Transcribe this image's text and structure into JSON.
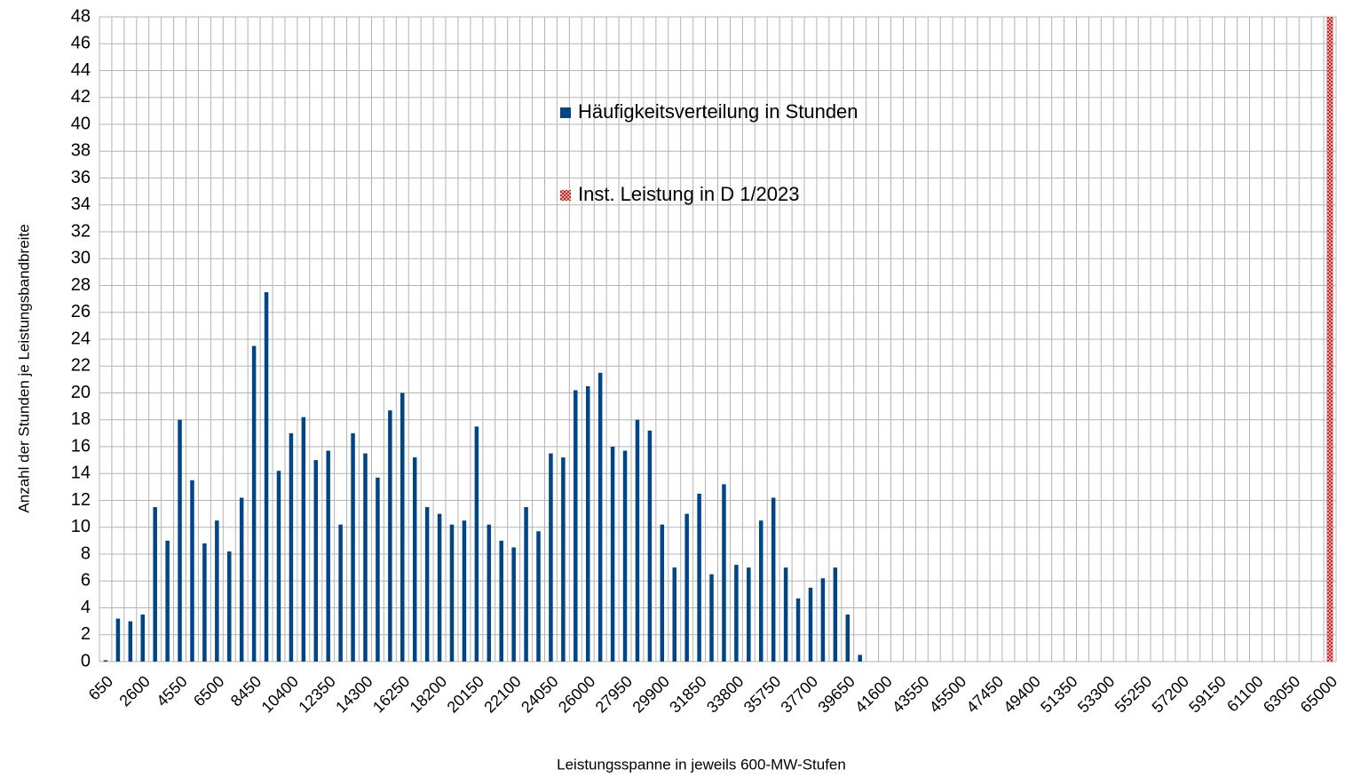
{
  "chart_data": {
    "type": "bar",
    "y_label": "Anzahl der Stunden je Leistungsbandbreite",
    "x_label": "Leistungsspanne in jeweils 600-MW-Stufen",
    "categories": [
      "650",
      null,
      null,
      "2600",
      null,
      null,
      "4550",
      null,
      null,
      "6500",
      null,
      null,
      "8450",
      null,
      null,
      "10400",
      null,
      null,
      "12350",
      null,
      null,
      "14300",
      null,
      null,
      "16250",
      null,
      null,
      "18200",
      null,
      null,
      "20150",
      null,
      null,
      "22100",
      null,
      null,
      "24050",
      null,
      null,
      "26000",
      null,
      null,
      "27950",
      null,
      null,
      "29900",
      null,
      null,
      "31850",
      null,
      null,
      "33800",
      null,
      null,
      "35750",
      null,
      null,
      "37700",
      null,
      null,
      "39650",
      null,
      null,
      "41600",
      null,
      null,
      "43550",
      null,
      null,
      "45500",
      null,
      null,
      "47450",
      null,
      null,
      "49400",
      null,
      null,
      "51350",
      null,
      null,
      "53300",
      null,
      null,
      "55250",
      null,
      null,
      "57200",
      null,
      null,
      "59150",
      null,
      null,
      "61100",
      null,
      null,
      "63050",
      null,
      null,
      "65000"
    ],
    "series": [
      {
        "name": "Häufigkeitsverteilung in Stunden",
        "color": "#004586",
        "values": [
          0.1,
          3.2,
          3,
          3.5,
          11.5,
          9,
          18,
          13.5,
          8.8,
          10.5,
          8.2,
          12.2,
          23.5,
          27.5,
          14.2,
          17,
          18.2,
          15,
          15.7,
          10.2,
          17,
          15.5,
          13.7,
          18.7,
          20,
          15.2,
          11.5,
          11,
          10.2,
          10.5,
          17.5,
          10.2,
          9,
          8.5,
          11.5,
          9.7,
          15.5,
          15.2,
          20.2,
          20.5,
          21.5,
          16,
          15.7,
          18,
          17.2,
          10.2,
          7,
          11,
          12.5,
          6.5,
          13.2,
          7.2,
          7,
          10.5,
          12.2,
          7,
          4.7,
          5.5,
          6.2,
          7,
          3.5,
          0.5,
          null,
          null,
          null,
          null,
          null,
          null,
          null,
          null,
          null,
          null,
          null,
          null,
          null,
          null,
          null,
          null,
          null,
          null,
          null,
          null,
          null,
          null,
          null,
          null,
          null,
          null,
          null,
          null,
          null,
          null,
          null,
          null,
          null,
          null,
          null,
          null,
          null,
          null
        ]
      },
      {
        "name": "Inst. Leistung in D 1/2023",
        "color": "#c9211e",
        "values": [
          null,
          null,
          null,
          null,
          null,
          null,
          null,
          null,
          null,
          null,
          null,
          null,
          null,
          null,
          null,
          null,
          null,
          null,
          null,
          null,
          null,
          null,
          null,
          null,
          null,
          null,
          null,
          null,
          null,
          null,
          null,
          null,
          null,
          null,
          null,
          null,
          null,
          null,
          null,
          null,
          null,
          null,
          null,
          null,
          null,
          null,
          null,
          null,
          null,
          null,
          null,
          null,
          null,
          null,
          null,
          null,
          null,
          null,
          null,
          null,
          null,
          null,
          null,
          null,
          null,
          null,
          null,
          null,
          null,
          null,
          null,
          null,
          null,
          null,
          null,
          null,
          null,
          null,
          null,
          null,
          null,
          null,
          null,
          null,
          null,
          null,
          null,
          null,
          null,
          null,
          null,
          null,
          null,
          null,
          null,
          null,
          null,
          null,
          null,
          48
        ]
      }
    ],
    "ylim": [
      0,
      48
    ],
    "yticks": [
      0,
      2,
      4,
      6,
      8,
      10,
      12,
      14,
      16,
      18,
      20,
      22,
      24,
      26,
      28,
      30,
      32,
      34,
      36,
      38,
      40,
      42,
      44,
      46,
      48
    ],
    "grid": true
  }
}
